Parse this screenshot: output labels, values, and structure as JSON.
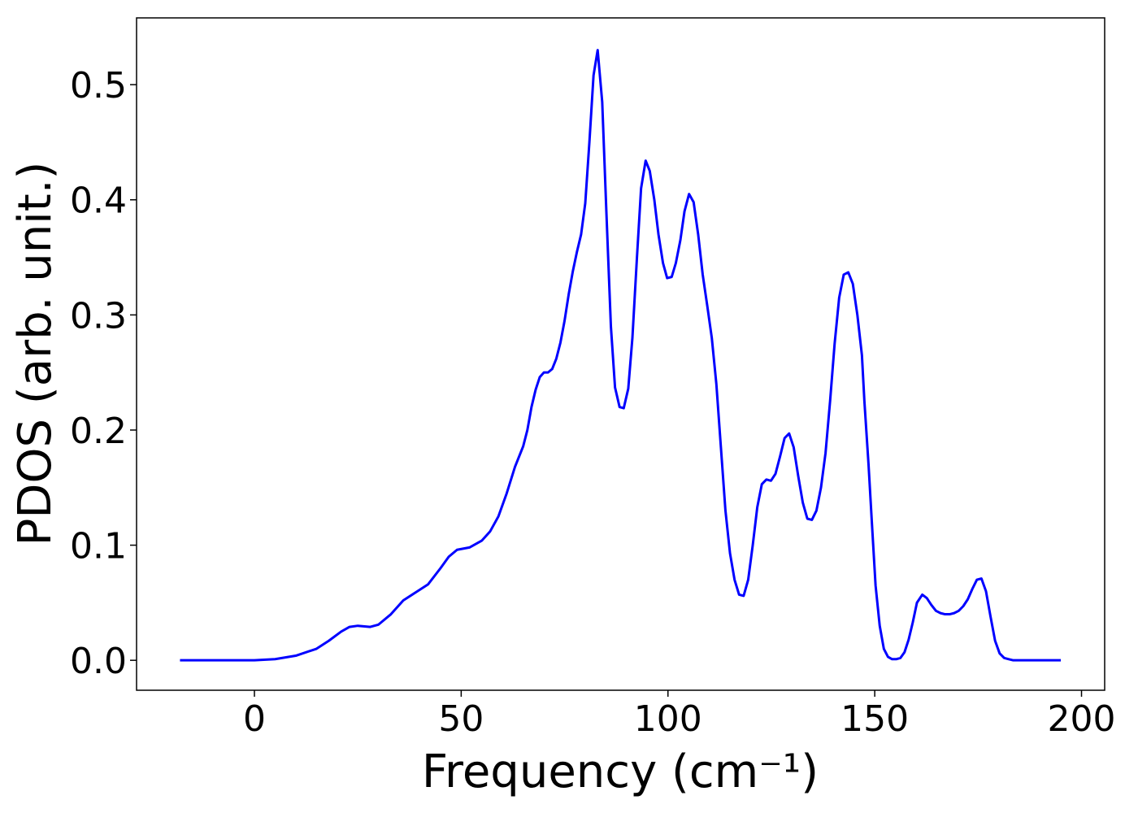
{
  "chart_data": {
    "type": "line",
    "xlabel": "Frequency (cm⁻¹)",
    "ylabel": "PDOS (arb. unit.)",
    "xlim": [
      -28.5,
      205.6
    ],
    "ylim": [
      -0.026,
      0.558
    ],
    "xticks": [
      0,
      50,
      100,
      150,
      200
    ],
    "yticks": [
      {
        "value": 0,
        "label": "0.0"
      },
      0.1,
      0.2,
      0.3,
      0.4,
      0.5
    ],
    "grid": false,
    "series": [
      {
        "color": "#0000ff",
        "x": [
          -18,
          0,
          5,
          10,
          15,
          18,
          21,
          23,
          25,
          28,
          30,
          33,
          36,
          39,
          42,
          45,
          47,
          49,
          52,
          55,
          57,
          59,
          61,
          63,
          65,
          66,
          67,
          68,
          69,
          70,
          71,
          72,
          73,
          74,
          75,
          76,
          77,
          78,
          79,
          80,
          81,
          82,
          83,
          84.1,
          85.1,
          86.2,
          87.2,
          88.3,
          89.3,
          90.4,
          91.4,
          92.5,
          93.5,
          94.6,
          95.6,
          96.7,
          97.7,
          98.8,
          99.8,
          100.9,
          101.9,
          103,
          104,
          105.1,
          106.2,
          107.3,
          108.4,
          109.5,
          110.6,
          111.7,
          112.8,
          113.9,
          115,
          116.1,
          117.2,
          118.3,
          119.4,
          120.5,
          121.6,
          122.7,
          123.8,
          124.9,
          126,
          127.1,
          128.2,
          129.3,
          130.4,
          131.5,
          132.6,
          133.7,
          134.8,
          135.9,
          137,
          138.1,
          139.2,
          140.3,
          141.4,
          142.5,
          143.6,
          144.7,
          145.8,
          146.9,
          147.5,
          148.5,
          149.3,
          150.2,
          151.2,
          152.2,
          153.2,
          154.2,
          155.2,
          156.2,
          157.2,
          158.2,
          159.2,
          160.2,
          161.5,
          162.6,
          163.7,
          164.8,
          165.9,
          167,
          168.1,
          169.2,
          170.3,
          171.4,
          172.5,
          173.6,
          174.7,
          175.8,
          176.9,
          178,
          179.1,
          180.2,
          181.3,
          182.4,
          183.5,
          190,
          195
        ],
        "values": [
          0,
          0,
          0.001,
          0.004,
          0.01,
          0.017,
          0.025,
          0.029,
          0.03,
          0.029,
          0.031,
          0.04,
          0.052,
          0.059,
          0.066,
          0.08,
          0.09,
          0.096,
          0.098,
          0.104,
          0.112,
          0.125,
          0.145,
          0.168,
          0.186,
          0.2,
          0.22,
          0.235,
          0.246,
          0.25,
          0.25,
          0.253,
          0.262,
          0.276,
          0.295,
          0.318,
          0.338,
          0.355,
          0.37,
          0.397,
          0.45,
          0.508,
          0.53,
          0.485,
          0.39,
          0.29,
          0.237,
          0.22,
          0.219,
          0.236,
          0.28,
          0.35,
          0.41,
          0.434,
          0.425,
          0.4,
          0.37,
          0.345,
          0.332,
          0.333,
          0.345,
          0.365,
          0.39,
          0.405,
          0.398,
          0.37,
          0.335,
          0.308,
          0.28,
          0.24,
          0.185,
          0.13,
          0.093,
          0.07,
          0.057,
          0.056,
          0.07,
          0.1,
          0.133,
          0.153,
          0.157,
          0.156,
          0.162,
          0.177,
          0.193,
          0.197,
          0.185,
          0.16,
          0.137,
          0.123,
          0.122,
          0.13,
          0.15,
          0.18,
          0.225,
          0.275,
          0.315,
          0.335,
          0.337,
          0.327,
          0.3,
          0.265,
          0.225,
          0.17,
          0.12,
          0.065,
          0.03,
          0.01,
          0.003,
          0.001,
          0.001,
          0.002,
          0.007,
          0.018,
          0.033,
          0.05,
          0.057,
          0.054,
          0.048,
          0.043,
          0.041,
          0.04,
          0.04,
          0.041,
          0.043,
          0.047,
          0.053,
          0.062,
          0.07,
          0.071,
          0.06,
          0.038,
          0.017,
          0.006,
          0.002,
          0.001,
          0,
          0,
          0
        ]
      }
    ]
  }
}
